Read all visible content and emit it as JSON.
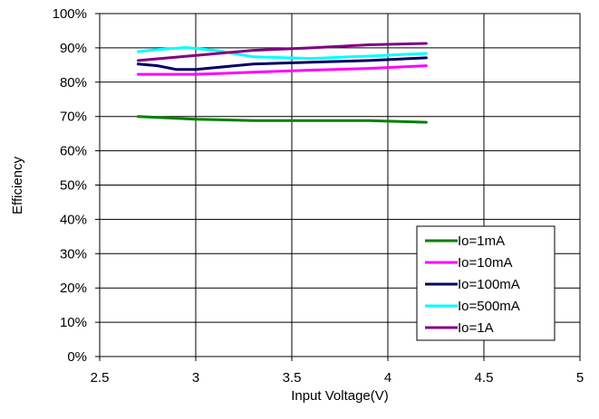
{
  "chart_data": {
    "type": "line",
    "xlabel": "Input Voltage(V)",
    "ylabel": "Efficiency",
    "xlim": [
      2.5,
      5
    ],
    "ylim": [
      0,
      100
    ],
    "x_ticks": [
      "2.5",
      "3",
      "3.5",
      "4",
      "4.5",
      "5"
    ],
    "y_ticks": [
      "0%",
      "10%",
      "20%",
      "30%",
      "40%",
      "50%",
      "60%",
      "70%",
      "80%",
      "90%",
      "100%"
    ],
    "grid": true,
    "legend_position": "bottom-right",
    "series": [
      {
        "name": "Io=1mA",
        "color": "#008000",
        "points": [
          [
            2.7,
            70.0
          ],
          [
            3.0,
            69.2
          ],
          [
            3.3,
            68.8
          ],
          [
            3.6,
            68.8
          ],
          [
            3.9,
            68.8
          ],
          [
            4.2,
            68.3
          ]
        ]
      },
      {
        "name": "Io=10mA",
        "color": "#ff00ff",
        "points": [
          [
            2.7,
            82.3
          ],
          [
            3.0,
            82.3
          ],
          [
            3.3,
            82.9
          ],
          [
            3.6,
            83.5
          ],
          [
            3.9,
            84.0
          ],
          [
            4.2,
            84.8
          ]
        ]
      },
      {
        "name": "Io=100mA",
        "color": "#000066",
        "points": [
          [
            2.7,
            85.3
          ],
          [
            2.8,
            84.8
          ],
          [
            2.9,
            83.7
          ],
          [
            3.0,
            83.7
          ],
          [
            3.3,
            85.3
          ],
          [
            3.6,
            85.8
          ],
          [
            3.9,
            86.3
          ],
          [
            4.2,
            87.1
          ]
        ]
      },
      {
        "name": "Io=500mA",
        "color": "#00ffff",
        "points": [
          [
            2.7,
            88.9
          ],
          [
            2.8,
            89.5
          ],
          [
            2.95,
            90.1
          ],
          [
            3.1,
            89.3
          ],
          [
            3.3,
            87.4
          ],
          [
            3.6,
            86.9
          ],
          [
            3.9,
            87.6
          ],
          [
            4.2,
            88.4
          ]
        ]
      },
      {
        "name": "Io=1A",
        "color": "#800080",
        "points": [
          [
            2.7,
            86.3
          ],
          [
            3.0,
            87.8
          ],
          [
            3.3,
            89.3
          ],
          [
            3.6,
            90.0
          ],
          [
            3.9,
            90.9
          ],
          [
            4.2,
            91.3
          ]
        ]
      }
    ]
  }
}
